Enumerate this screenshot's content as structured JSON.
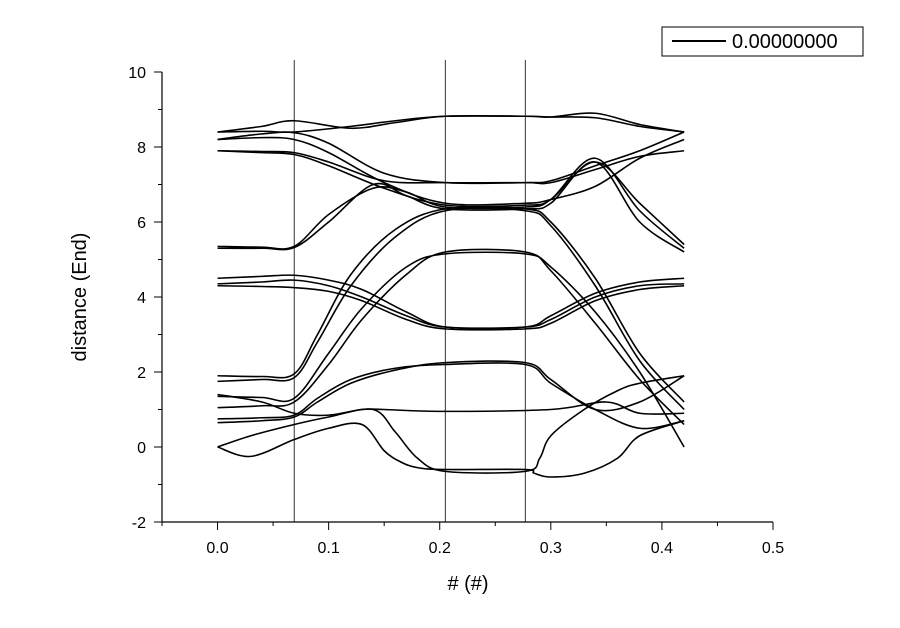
{
  "chart_data": {
    "type": "line",
    "title": "",
    "xlabel": "# (#)",
    "ylabel": "distance (End)",
    "xlim": [
      -0.05,
      0.5
    ],
    "ylim": [
      -2,
      10
    ],
    "xticks": [
      "0.0",
      "0.1",
      "0.2",
      "0.3",
      "0.4",
      "0.5"
    ],
    "yticks": [
      "-2",
      "0",
      "2",
      "4",
      "6",
      "8",
      "10"
    ],
    "grid": false,
    "legend": {
      "position": "top-right",
      "entries": [
        "0.00000000"
      ]
    },
    "vertical_lines": [
      0.069,
      0.205,
      0.277
    ],
    "series": [
      {
        "x": [
          0,
          0.04,
          0.069,
          0.12,
          0.16,
          0.205,
          0.277,
          0.3,
          0.34,
          0.38,
          0.42
        ],
        "y": [
          8.4,
          8.42,
          8.4,
          8.55,
          8.7,
          8.82,
          8.82,
          8.8,
          8.9,
          8.6,
          8.4
        ]
      },
      {
        "x": [
          0,
          0.04,
          0.069,
          0.12,
          0.16,
          0.205,
          0.277,
          0.3,
          0.34,
          0.38,
          0.42
        ],
        "y": [
          8.4,
          8.55,
          8.7,
          8.5,
          8.65,
          8.82,
          8.82,
          8.8,
          8.78,
          8.55,
          8.4
        ]
      },
      {
        "x": [
          0,
          0.04,
          0.069,
          0.1,
          0.15,
          0.205,
          0.277,
          0.3,
          0.34,
          0.38,
          0.42
        ],
        "y": [
          8.2,
          8.35,
          8.38,
          8.1,
          7.3,
          7.05,
          7.05,
          7.1,
          7.5,
          7.9,
          8.4
        ]
      },
      {
        "x": [
          0,
          0.04,
          0.069,
          0.1,
          0.15,
          0.205,
          0.277,
          0.3,
          0.34,
          0.38,
          0.42
        ],
        "y": [
          8.2,
          8.25,
          8.2,
          7.85,
          7.05,
          6.5,
          6.5,
          6.6,
          6.95,
          7.7,
          8.2
        ]
      },
      {
        "x": [
          0,
          0.04,
          0.069,
          0.1,
          0.15,
          0.205,
          0.277,
          0.3,
          0.34,
          0.38,
          0.42
        ],
        "y": [
          7.9,
          7.88,
          7.85,
          7.6,
          7.1,
          7.05,
          7.05,
          7.05,
          7.4,
          7.75,
          7.9
        ]
      },
      {
        "x": [
          0,
          0.04,
          0.069,
          0.1,
          0.15,
          0.205,
          0.277,
          0.3,
          0.34,
          0.38,
          0.42
        ],
        "y": [
          7.9,
          7.85,
          7.8,
          7.5,
          6.9,
          6.45,
          6.45,
          6.6,
          7.6,
          6.5,
          5.4
        ]
      },
      {
        "x": [
          0,
          0.04,
          0.069,
          0.1,
          0.14,
          0.17,
          0.205,
          0.277,
          0.3,
          0.34,
          0.38,
          0.42
        ],
        "y": [
          5.35,
          5.33,
          5.35,
          6.2,
          6.9,
          6.8,
          6.4,
          6.4,
          6.6,
          7.7,
          6.3,
          5.3
        ]
      },
      {
        "x": [
          0,
          0.04,
          0.069,
          0.1,
          0.14,
          0.17,
          0.205,
          0.277,
          0.3,
          0.34,
          0.38,
          0.42
        ],
        "y": [
          5.3,
          5.3,
          5.32,
          6.0,
          7.0,
          6.7,
          6.35,
          6.35,
          6.5,
          7.6,
          6.0,
          5.2
        ]
      },
      {
        "x": [
          0,
          0.04,
          0.069,
          0.1,
          0.13,
          0.17,
          0.205,
          0.277,
          0.3,
          0.34,
          0.38,
          0.42
        ],
        "y": [
          4.5,
          4.55,
          4.58,
          4.45,
          4.2,
          3.6,
          3.2,
          3.2,
          3.5,
          4.1,
          4.4,
          4.5
        ]
      },
      {
        "x": [
          0,
          0.04,
          0.069,
          0.1,
          0.13,
          0.17,
          0.205,
          0.277,
          0.3,
          0.34,
          0.38,
          0.42
        ],
        "y": [
          4.35,
          4.4,
          4.45,
          4.3,
          4.0,
          3.5,
          3.2,
          3.2,
          3.4,
          4.0,
          4.3,
          4.35
        ]
      },
      {
        "x": [
          0,
          0.04,
          0.069,
          0.1,
          0.13,
          0.17,
          0.205,
          0.277,
          0.3,
          0.34,
          0.38,
          0.42
        ],
        "y": [
          4.3,
          4.28,
          4.25,
          4.15,
          3.9,
          3.4,
          3.15,
          3.15,
          3.3,
          3.9,
          4.2,
          4.3
        ]
      },
      {
        "x": [
          0,
          0.04,
          0.069,
          0.09,
          0.12,
          0.16,
          0.205,
          0.277,
          0.3,
          0.34,
          0.38,
          0.42
        ],
        "y": [
          1.9,
          1.88,
          1.95,
          3.0,
          4.6,
          5.8,
          6.35,
          6.35,
          6.0,
          4.5,
          2.5,
          1.2
        ]
      },
      {
        "x": [
          0,
          0.04,
          0.069,
          0.09,
          0.12,
          0.16,
          0.205,
          0.277,
          0.3,
          0.34,
          0.38,
          0.42
        ],
        "y": [
          1.75,
          1.8,
          1.85,
          2.8,
          4.3,
          5.6,
          6.3,
          6.3,
          5.9,
          4.3,
          2.3,
          1.0
        ]
      },
      {
        "x": [
          0,
          0.04,
          0.069,
          0.1,
          0.13,
          0.17,
          0.205,
          0.277,
          0.3,
          0.34,
          0.38,
          0.42
        ],
        "y": [
          1.35,
          1.32,
          1.3,
          2.5,
          3.7,
          4.8,
          5.15,
          5.15,
          4.8,
          3.6,
          2.0,
          0.0
        ]
      },
      {
        "x": [
          0,
          0.04,
          0.069,
          0.1,
          0.13,
          0.17,
          0.205,
          0.277,
          0.3,
          0.34,
          0.38,
          0.42
        ],
        "y": [
          1.05,
          1.1,
          1.2,
          2.2,
          3.4,
          4.6,
          5.2,
          5.2,
          4.7,
          3.3,
          1.8,
          0.6
        ]
      },
      {
        "x": [
          0,
          0.04,
          0.069,
          0.09,
          0.12,
          0.16,
          0.205,
          0.277,
          0.3,
          0.34,
          0.38,
          0.42
        ],
        "y": [
          0.65,
          0.7,
          0.8,
          1.2,
          1.7,
          2.05,
          2.25,
          2.25,
          1.8,
          1.0,
          1.2,
          1.9
        ]
      },
      {
        "x": [
          0,
          0.04,
          0.069,
          0.09,
          0.12,
          0.16,
          0.205,
          0.277,
          0.3,
          0.34,
          0.38,
          0.42
        ],
        "y": [
          0.75,
          0.78,
          0.85,
          1.3,
          1.8,
          2.1,
          2.2,
          2.2,
          1.7,
          1.0,
          0.5,
          0.7
        ]
      },
      {
        "x": [
          0,
          0.03,
          0.069,
          0.1,
          0.13,
          0.15,
          0.165,
          0.18,
          0.205,
          0.277,
          0.285,
          0.3,
          0.33,
          0.36,
          0.38,
          0.42
        ],
        "y": [
          0,
          -0.25,
          0.2,
          0.5,
          0.6,
          -0.1,
          -0.4,
          -0.55,
          -0.6,
          -0.6,
          -0.7,
          -0.8,
          -0.7,
          -0.3,
          0.3,
          0.7
        ]
      },
      {
        "x": [
          0,
          0.03,
          0.069,
          0.1,
          0.14,
          0.16,
          0.18,
          0.205,
          0.277,
          0.29,
          0.3,
          0.33,
          0.36,
          0.38,
          0.42
        ],
        "y": [
          0,
          0.3,
          0.6,
          0.8,
          1.0,
          0.4,
          -0.3,
          -0.65,
          -0.65,
          -0.3,
          0.3,
          1.0,
          1.5,
          1.7,
          1.9
        ]
      },
      {
        "x": [
          0,
          0.04,
          0.069,
          0.1,
          0.13,
          0.15,
          0.2,
          0.3,
          0.35,
          0.38,
          0.42
        ],
        "y": [
          1.4,
          1.2,
          0.9,
          0.85,
          1.0,
          1.0,
          0.95,
          1.0,
          1.2,
          0.9,
          0.9
        ]
      }
    ]
  }
}
